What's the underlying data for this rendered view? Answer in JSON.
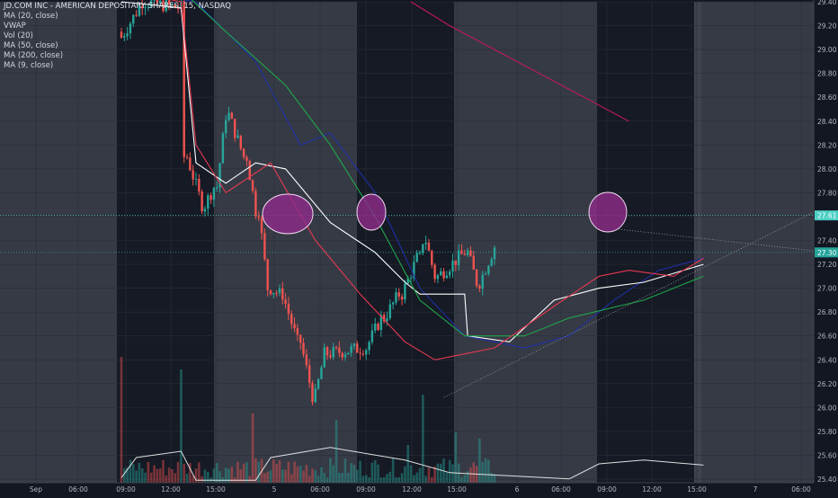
{
  "chart_data": {
    "type": "candlestick",
    "title": "JD.COM INC - AMERICAN DEPOSITARY SHARES, 15, NASDAQ",
    "indicators": [
      "MA (20, close)",
      "VWAP",
      "Vol (20)",
      "MA (50, close)",
      "MA (200, close)",
      "MA (9, close)"
    ],
    "y_ticks": [
      "29.40",
      "29.20",
      "29.00",
      "28.80",
      "28.60",
      "28.40",
      "28.20",
      "28.00",
      "27.80",
      "27.60",
      "27.40",
      "27.20",
      "27.00",
      "26.80",
      "26.60",
      "26.40",
      "26.20",
      "26.00",
      "25.80",
      "25.60",
      "25.40"
    ],
    "y_range": [
      25.37,
      29.4
    ],
    "x_ticks": [
      "Sep",
      "06:00",
      "09:00",
      "12:00",
      "15:00",
      "5",
      "06:00",
      "09:00",
      "12:00",
      "15:00",
      "6",
      "06:00",
      "09:00",
      "12:00",
      "15:00",
      "7",
      "06:00"
    ],
    "price_labels": [
      "27.61",
      "27.30"
    ],
    "horizontal_lines": [
      {
        "value": 27.61,
        "color": "#4dd0c4"
      },
      {
        "value": 27.3,
        "color": "#26a69a"
      }
    ],
    "colors": {
      "background": "#131722",
      "session": "#363a45",
      "up": "#26a69a",
      "down": "#ef5350",
      "ma20": "#1e2fa8",
      "vwap": "#ffffff",
      "ma50": "#1fa84a",
      "ma200": "#c2185b",
      "ma9": "#e53950",
      "circle": "#8e2c8a",
      "trendline": "#9ba39e"
    },
    "ohlc_segments": [
      {
        "from": 29.1,
        "to": 29.4,
        "n": 8
      },
      {
        "from": 29.4,
        "to": 29.35,
        "n": 12
      },
      {
        "from": 29.35,
        "to": 28.1,
        "n": 2
      },
      {
        "from": 28.1,
        "to": 27.7,
        "n": 6
      },
      {
        "from": 27.7,
        "to": 27.85,
        "n": 4
      },
      {
        "from": 27.85,
        "to": 28.45,
        "n": 4
      },
      {
        "from": 28.45,
        "to": 28.1,
        "n": 6
      },
      {
        "from": 28.1,
        "to": 27.65,
        "n": 4
      },
      {
        "from": 27.65,
        "to": 27.0,
        "n": 4
      },
      {
        "from": 27.0,
        "to": 26.95,
        "n": 4
      },
      {
        "from": 26.95,
        "to": 26.55,
        "n": 6
      },
      {
        "from": 26.55,
        "to": 26.1,
        "n": 5
      },
      {
        "from": 26.1,
        "to": 26.45,
        "n": 4
      },
      {
        "from": 26.45,
        "to": 26.5,
        "n": 13
      },
      {
        "from": 26.5,
        "to": 26.75,
        "n": 6
      },
      {
        "from": 26.75,
        "to": 26.95,
        "n": 6
      },
      {
        "from": 26.95,
        "to": 27.25,
        "n": 6
      },
      {
        "from": 27.25,
        "to": 27.4,
        "n": 2
      },
      {
        "from": 27.4,
        "to": 27.1,
        "n": 4
      },
      {
        "from": 27.1,
        "to": 27.3,
        "n": 10
      },
      {
        "from": 27.3,
        "to": 27.05,
        "n": 4
      },
      {
        "from": 27.05,
        "to": 27.35,
        "n": 6
      }
    ],
    "ma_series": {
      "ma20": [
        [
          0,
          29.5
        ],
        [
          25,
          29.4
        ],
        [
          45,
          28.9
        ],
        [
          60,
          28.2
        ],
        [
          70,
          28.3
        ],
        [
          85,
          27.8
        ],
        [
          100,
          27.0
        ],
        [
          115,
          26.6
        ],
        [
          135,
          26.5
        ],
        [
          150,
          26.6
        ],
        [
          165,
          26.9
        ],
        [
          180,
          27.15
        ],
        [
          195,
          27.25
        ]
      ],
      "vwap": [
        [
          0,
          29.4
        ],
        [
          20,
          29.35
        ],
        [
          25,
          28.05
        ],
        [
          35,
          27.88
        ],
        [
          45,
          28.05
        ],
        [
          55,
          28.0
        ],
        [
          70,
          27.55
        ],
        [
          85,
          27.3
        ],
        [
          95,
          27.05
        ],
        [
          100,
          26.95
        ],
        [
          115,
          26.95
        ],
        [
          116,
          26.6
        ],
        [
          130,
          26.55
        ],
        [
          145,
          26.9
        ],
        [
          160,
          27.0
        ],
        [
          175,
          27.05
        ],
        [
          195,
          27.2
        ]
      ],
      "ma50": [
        [
          20,
          29.5
        ],
        [
          35,
          29.15
        ],
        [
          55,
          28.7
        ],
        [
          70,
          28.2
        ],
        [
          85,
          27.6
        ],
        [
          100,
          26.9
        ],
        [
          115,
          26.6
        ],
        [
          135,
          26.6
        ],
        [
          150,
          26.75
        ],
        [
          175,
          26.9
        ],
        [
          195,
          27.1
        ]
      ],
      "ma200": [
        [
          97,
          29.4
        ],
        [
          110,
          29.2
        ],
        [
          125,
          29.0
        ],
        [
          140,
          28.8
        ],
        [
          155,
          28.6
        ],
        [
          170,
          28.4
        ]
      ],
      "ma9": [
        [
          0,
          29.5
        ],
        [
          20,
          29.4
        ],
        [
          25,
          28.2
        ],
        [
          35,
          27.8
        ],
        [
          50,
          28.05
        ],
        [
          65,
          27.4
        ],
        [
          80,
          26.95
        ],
        [
          95,
          26.55
        ],
        [
          105,
          26.4
        ],
        [
          125,
          26.5
        ],
        [
          145,
          26.85
        ],
        [
          160,
          27.1
        ],
        [
          170,
          27.15
        ],
        [
          185,
          27.1
        ],
        [
          195,
          27.25
        ]
      ]
    },
    "volume_spikes": [
      {
        "bar": 0,
        "ratio": 1.0
      },
      {
        "bar": 20,
        "ratio": 0.9
      },
      {
        "bar": 44,
        "ratio": 0.55
      },
      {
        "bar": 72,
        "ratio": 0.5
      },
      {
        "bar": 96,
        "ratio": 0.3
      },
      {
        "bar": 101,
        "ratio": 0.7
      },
      {
        "bar": 112,
        "ratio": 0.4
      },
      {
        "bar": 120,
        "ratio": 0.35
      },
      {
        "bar": 162,
        "ratio": 0.35
      },
      {
        "bar": 185,
        "ratio": 0.85
      },
      {
        "bar": 196,
        "ratio": 0.55
      }
    ],
    "vol_ma": [
      [
        0,
        0.04
      ],
      [
        5,
        0.2
      ],
      [
        20,
        0.25
      ],
      [
        25,
        0.02
      ],
      [
        45,
        0.02
      ],
      [
        50,
        0.2
      ],
      [
        70,
        0.28
      ],
      [
        95,
        0.18
      ],
      [
        110,
        0.08
      ],
      [
        150,
        0.03
      ],
      [
        160,
        0.15
      ],
      [
        175,
        0.18
      ],
      [
        195,
        0.14
      ]
    ]
  }
}
